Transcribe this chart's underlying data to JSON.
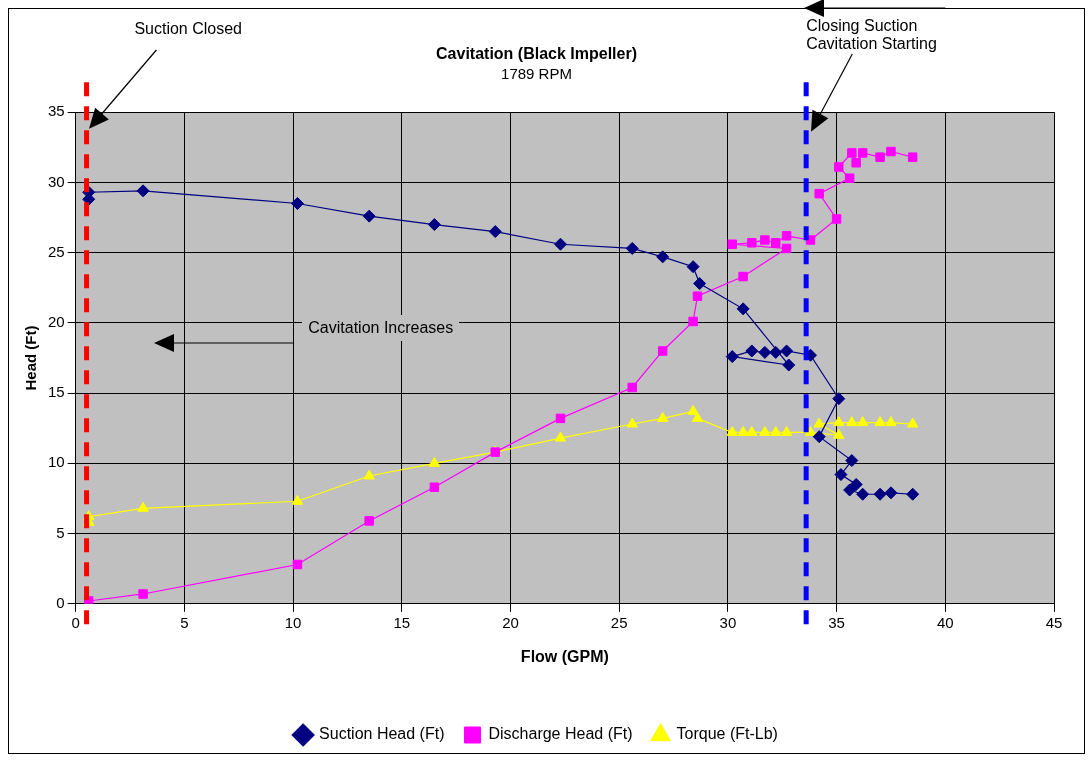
{
  "chart_data": {
    "type": "line",
    "title": "Cavitation (Black Impeller)",
    "subtitle": "1789 RPM",
    "xlabel": "Flow (GPM)",
    "ylabel": "Head (Ft)",
    "xlim": [
      0,
      45
    ],
    "xticks": [
      0,
      5,
      10,
      15,
      20,
      25,
      30,
      35,
      40,
      45
    ],
    "ylim": [
      0,
      35
    ],
    "yticks": [
      0,
      5,
      10,
      15,
      20,
      25,
      30,
      35
    ],
    "grid": true,
    "legend": "bottom",
    "series": [
      {
        "name": "Suction Head (Ft)",
        "color": "#000080",
        "marker": "diamond",
        "x": [
          0.6,
          0.6,
          3.1,
          10.2,
          13.5,
          16.5,
          19.3,
          22.3,
          25.6,
          27.0,
          28.4,
          28.7,
          30.7,
          32.8,
          30.2,
          31.1,
          31.7,
          32.2,
          32.7,
          33.8,
          35.1,
          34.2,
          35.7,
          35.2,
          35.9,
          35.6,
          36.2,
          37.0,
          37.5,
          38.5
        ],
        "values": [
          28.8,
          29.3,
          29.4,
          28.5,
          27.6,
          27.0,
          26.5,
          25.6,
          25.3,
          24.7,
          24.0,
          22.8,
          21.0,
          17.0,
          17.6,
          18.0,
          17.9,
          17.9,
          18.0,
          17.7,
          14.6,
          11.9,
          10.2,
          9.2,
          8.5,
          8.1,
          7.8,
          7.8,
          7.9,
          7.8
        ]
      },
      {
        "name": "Discharge Head (Ft)",
        "color": "#ff00ff",
        "marker": "square",
        "x": [
          0.6,
          3.1,
          10.2,
          13.5,
          16.5,
          19.3,
          22.3,
          25.6,
          27.0,
          28.4,
          28.6,
          30.7,
          32.7,
          30.2,
          31.1,
          31.7,
          32.2,
          32.7,
          33.8,
          35.0,
          34.2,
          35.6,
          35.1,
          35.7,
          35.9,
          36.2,
          37.0,
          37.5,
          38.5
        ],
        "values": [
          0.2,
          0.7,
          2.8,
          5.9,
          8.3,
          10.8,
          13.2,
          15.4,
          18.0,
          20.1,
          21.9,
          23.3,
          25.3,
          25.6,
          25.7,
          25.9,
          25.7,
          26.2,
          25.9,
          27.4,
          29.2,
          30.3,
          31.1,
          32.1,
          31.4,
          32.1,
          31.8,
          32.2,
          31.8
        ]
      },
      {
        "name": "Torque (Ft-Lb)",
        "color": "#ffff00",
        "marker": "triangle",
        "x": [
          0.6,
          0.6,
          3.1,
          10.2,
          13.5,
          16.5,
          19.3,
          22.3,
          25.6,
          27.0,
          28.4,
          28.6,
          30.2,
          30.7,
          31.1,
          31.7,
          32.2,
          32.7,
          33.8,
          35.1,
          34.2,
          35.1,
          35.7,
          36.2,
          37.0,
          37.5,
          38.5
        ],
        "values": [
          5.8,
          6.2,
          6.8,
          7.3,
          9.1,
          10.0,
          10.8,
          11.8,
          12.8,
          13.2,
          13.7,
          13.2,
          12.2,
          12.2,
          12.2,
          12.2,
          12.2,
          12.2,
          12.2,
          12.0,
          12.8,
          12.9,
          12.9,
          12.9,
          12.9,
          12.9,
          12.8
        ]
      }
    ],
    "ref_lines": [
      {
        "axis": "x",
        "value": 0.5,
        "color": "#ff0000",
        "line_style": "dashed"
      },
      {
        "axis": "x",
        "value": 33.6,
        "color": "#0000ff",
        "line_style": "dashed"
      }
    ],
    "annotations": [
      "Suction Closed",
      "Closing Suction\nCavitation Starting",
      "Cavitation Increases"
    ]
  }
}
